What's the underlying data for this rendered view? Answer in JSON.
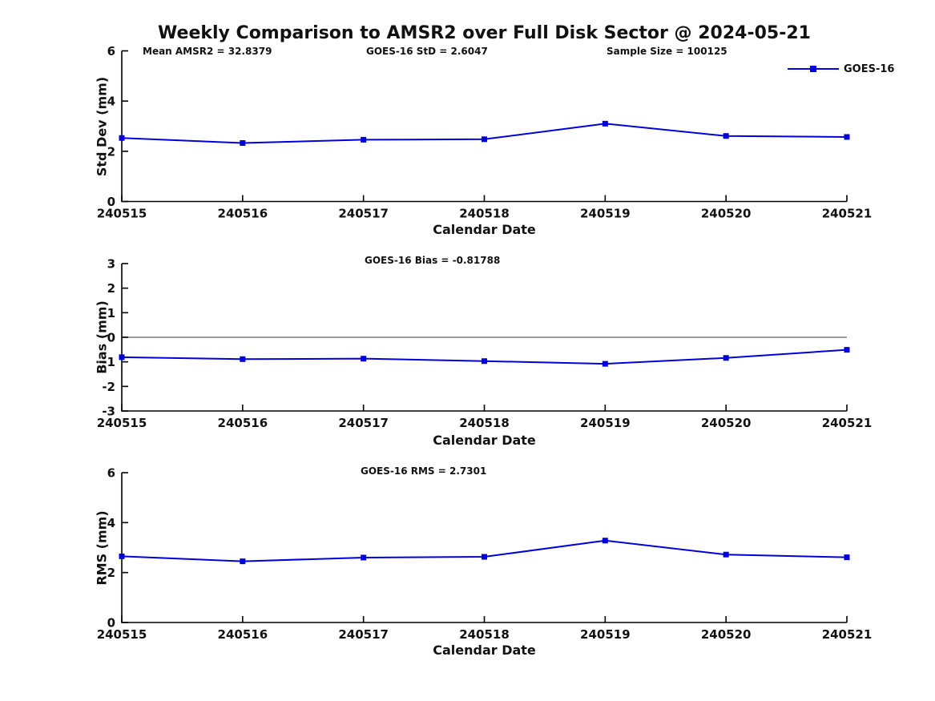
{
  "title": "Weekly Comparison to AMSR2 over Full Disk Sector @ 2024-05-21",
  "legend": {
    "label": "GOES-16"
  },
  "colors": {
    "line": "#0000dd",
    "marker": "#0000dd",
    "zero_line": "#7f7f7f",
    "axis": "#000000",
    "text": "#111111",
    "background": "#ffffff"
  },
  "chart_data": [
    {
      "type": "line",
      "name": "std-dev",
      "ylabel": "Std Dev (mm)",
      "xlabel": "Calendar Date",
      "categories": [
        "240515",
        "240516",
        "240517",
        "240518",
        "240519",
        "240520",
        "240521"
      ],
      "series": [
        {
          "name": "GOES-16",
          "values": [
            2.53,
            2.33,
            2.46,
            2.48,
            3.1,
            2.61,
            2.57
          ]
        }
      ],
      "ylim": [
        0,
        6
      ],
      "yticks": [
        0,
        2,
        4,
        6
      ],
      "annotations": [
        "Mean AMSR2 = 32.8379",
        "GOES-16 StD = 2.6047",
        "Sample Size = 100125"
      ],
      "legend_position": "top-right",
      "grid": false,
      "zero_line": false
    },
    {
      "type": "line",
      "name": "bias",
      "ylabel": "Bias (mm)",
      "xlabel": "Calendar Date",
      "categories": [
        "240515",
        "240516",
        "240517",
        "240518",
        "240519",
        "240520",
        "240521"
      ],
      "series": [
        {
          "name": "GOES-16",
          "values": [
            -0.81,
            -0.89,
            -0.87,
            -0.97,
            -1.08,
            -0.84,
            -0.51
          ]
        }
      ],
      "ylim": [
        -3,
        3
      ],
      "yticks": [
        -3,
        -2,
        -1,
        0,
        1,
        2,
        3
      ],
      "annotations": [
        "GOES-16 Bias  = -0.81788"
      ],
      "grid": false,
      "zero_line": true
    },
    {
      "type": "line",
      "name": "rms",
      "ylabel": "RMS (mm)",
      "xlabel": "Calendar Date",
      "categories": [
        "240515",
        "240516",
        "240517",
        "240518",
        "240519",
        "240520",
        "240521"
      ],
      "series": [
        {
          "name": "GOES-16",
          "values": [
            2.65,
            2.45,
            2.6,
            2.63,
            3.28,
            2.72,
            2.61
          ]
        }
      ],
      "ylim": [
        0,
        6
      ],
      "yticks": [
        0,
        2,
        4,
        6
      ],
      "annotations": [
        "GOES-16 RMS = 2.7301"
      ],
      "grid": false,
      "zero_line": false
    }
  ]
}
